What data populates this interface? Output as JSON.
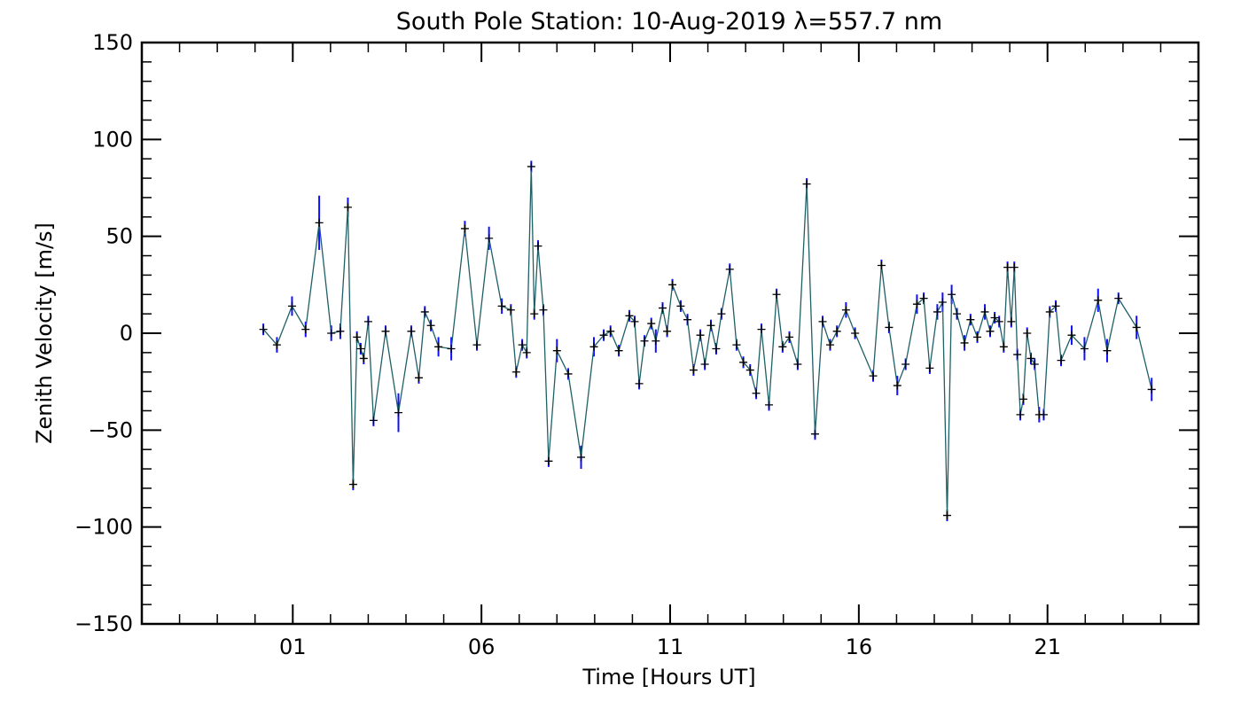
{
  "chart_data": {
    "type": "line",
    "title": "South Pole Station: 10-Aug-2019 λ=557.7 nm",
    "xlabel": "Time [Hours UT]",
    "ylabel": "Zenith Velocity [m/s]",
    "xlim": [
      -3.0,
      25.0
    ],
    "ylim": [
      -150,
      150
    ],
    "x_ticks": [
      1,
      6,
      11,
      16,
      21
    ],
    "x_tick_labels": [
      "01",
      "06",
      "11",
      "16",
      "21"
    ],
    "y_ticks": [
      -150,
      -100,
      -50,
      0,
      50,
      100,
      150
    ],
    "y_tick_labels": [
      "−150",
      "−100",
      "−50",
      "0",
      "50",
      "100",
      "150"
    ],
    "colors": {
      "line": "#1f5f66",
      "errorbar": "#1010ff",
      "marker": "#000000"
    },
    "series": [
      {
        "name": "Zenith Velocity",
        "points": [
          {
            "x": 0.22,
            "y": 2,
            "err": 3
          },
          {
            "x": 0.58,
            "y": -6,
            "err": 4
          },
          {
            "x": 0.98,
            "y": 14,
            "err": 5
          },
          {
            "x": 1.34,
            "y": 2,
            "err": 4
          },
          {
            "x": 1.7,
            "y": 57,
            "err": 14
          },
          {
            "x": 2.02,
            "y": 0,
            "err": 4
          },
          {
            "x": 2.26,
            "y": 1,
            "err": 4
          },
          {
            "x": 2.46,
            "y": 65,
            "err": 5
          },
          {
            "x": 2.6,
            "y": -78,
            "err": 3
          },
          {
            "x": 2.7,
            "y": -2,
            "err": 3
          },
          {
            "x": 2.8,
            "y": -8,
            "err": 3
          },
          {
            "x": 2.88,
            "y": -13,
            "err": 3
          },
          {
            "x": 3.0,
            "y": 6,
            "err": 3
          },
          {
            "x": 3.14,
            "y": -45,
            "err": 3
          },
          {
            "x": 3.46,
            "y": 1,
            "err": 3
          },
          {
            "x": 3.8,
            "y": -41,
            "err": 10
          },
          {
            "x": 4.14,
            "y": 1,
            "err": 3
          },
          {
            "x": 4.34,
            "y": -23,
            "err": 3
          },
          {
            "x": 4.5,
            "y": 11,
            "err": 3
          },
          {
            "x": 4.66,
            "y": 4,
            "err": 3
          },
          {
            "x": 4.86,
            "y": -7,
            "err": 5
          },
          {
            "x": 5.2,
            "y": -8,
            "err": 6
          },
          {
            "x": 5.56,
            "y": 54,
            "err": 4
          },
          {
            "x": 5.88,
            "y": -6,
            "err": 3
          },
          {
            "x": 6.2,
            "y": 49,
            "err": 6
          },
          {
            "x": 6.54,
            "y": 14,
            "err": 4
          },
          {
            "x": 6.78,
            "y": 12,
            "err": 3
          },
          {
            "x": 6.92,
            "y": -20,
            "err": 3
          },
          {
            "x": 7.08,
            "y": -6,
            "err": 3
          },
          {
            "x": 7.2,
            "y": -10,
            "err": 3
          },
          {
            "x": 7.32,
            "y": 86,
            "err": 3
          },
          {
            "x": 7.4,
            "y": 10,
            "err": 3
          },
          {
            "x": 7.5,
            "y": 45,
            "err": 3
          },
          {
            "x": 7.64,
            "y": 12,
            "err": 3
          },
          {
            "x": 7.78,
            "y": -66,
            "err": 3
          },
          {
            "x": 8.0,
            "y": -9,
            "err": 6
          },
          {
            "x": 8.3,
            "y": -21,
            "err": 3
          },
          {
            "x": 8.64,
            "y": -64,
            "err": 6
          },
          {
            "x": 8.98,
            "y": -7,
            "err": 5
          },
          {
            "x": 9.24,
            "y": -1,
            "err": 3
          },
          {
            "x": 9.42,
            "y": 1,
            "err": 3
          },
          {
            "x": 9.64,
            "y": -9,
            "err": 3
          },
          {
            "x": 9.92,
            "y": 9,
            "err": 3
          },
          {
            "x": 10.06,
            "y": 6,
            "err": 3
          },
          {
            "x": 10.18,
            "y": -26,
            "err": 3
          },
          {
            "x": 10.32,
            "y": -4,
            "err": 3
          },
          {
            "x": 10.5,
            "y": 5,
            "err": 3
          },
          {
            "x": 10.62,
            "y": -4,
            "err": 6
          },
          {
            "x": 10.8,
            "y": 13,
            "err": 3
          },
          {
            "x": 10.92,
            "y": 1,
            "err": 3
          },
          {
            "x": 11.06,
            "y": 25,
            "err": 3
          },
          {
            "x": 11.28,
            "y": 14,
            "err": 3
          },
          {
            "x": 11.46,
            "y": 7,
            "err": 3
          },
          {
            "x": 11.62,
            "y": -19,
            "err": 3
          },
          {
            "x": 11.8,
            "y": -1,
            "err": 3
          },
          {
            "x": 11.92,
            "y": -16,
            "err": 3
          },
          {
            "x": 12.08,
            "y": 4,
            "err": 3
          },
          {
            "x": 12.22,
            "y": -8,
            "err": 3
          },
          {
            "x": 12.36,
            "y": 10,
            "err": 3
          },
          {
            "x": 12.58,
            "y": 33,
            "err": 3
          },
          {
            "x": 12.76,
            "y": -6,
            "err": 3
          },
          {
            "x": 12.94,
            "y": -15,
            "err": 3
          },
          {
            "x": 13.12,
            "y": -19,
            "err": 3
          },
          {
            "x": 13.28,
            "y": -31,
            "err": 3
          },
          {
            "x": 13.42,
            "y": 2,
            "err": 3
          },
          {
            "x": 13.62,
            "y": -37,
            "err": 3
          },
          {
            "x": 13.82,
            "y": 20,
            "err": 3
          },
          {
            "x": 13.98,
            "y": -7,
            "err": 3
          },
          {
            "x": 14.16,
            "y": -2,
            "err": 3
          },
          {
            "x": 14.38,
            "y": -16,
            "err": 3
          },
          {
            "x": 14.62,
            "y": 77,
            "err": 3
          },
          {
            "x": 14.84,
            "y": -52,
            "err": 3
          },
          {
            "x": 15.04,
            "y": 6,
            "err": 3
          },
          {
            "x": 15.24,
            "y": -6,
            "err": 3
          },
          {
            "x": 15.42,
            "y": 1,
            "err": 3
          },
          {
            "x": 15.66,
            "y": 12,
            "err": 4
          },
          {
            "x": 15.9,
            "y": 0,
            "err": 3
          },
          {
            "x": 16.38,
            "y": -22,
            "err": 3
          },
          {
            "x": 16.6,
            "y": 35,
            "err": 3
          },
          {
            "x": 16.8,
            "y": 3,
            "err": 3
          },
          {
            "x": 17.02,
            "y": -27,
            "err": 5
          },
          {
            "x": 17.24,
            "y": -16,
            "err": 3
          },
          {
            "x": 17.54,
            "y": 15,
            "err": 5
          },
          {
            "x": 17.72,
            "y": 18,
            "err": 3
          },
          {
            "x": 17.88,
            "y": -18,
            "err": 3
          },
          {
            "x": 18.08,
            "y": 11,
            "err": 4
          },
          {
            "x": 18.22,
            "y": 16,
            "err": 5
          },
          {
            "x": 18.34,
            "y": -94,
            "err": 3
          },
          {
            "x": 18.46,
            "y": 20,
            "err": 5
          },
          {
            "x": 18.6,
            "y": 10,
            "err": 3
          },
          {
            "x": 18.8,
            "y": -5,
            "err": 4
          },
          {
            "x": 18.96,
            "y": 7,
            "err": 3
          },
          {
            "x": 19.14,
            "y": -2,
            "err": 3
          },
          {
            "x": 19.34,
            "y": 11,
            "err": 4
          },
          {
            "x": 19.48,
            "y": 1,
            "err": 3
          },
          {
            "x": 19.6,
            "y": 8,
            "err": 3
          },
          {
            "x": 19.72,
            "y": 6,
            "err": 3
          },
          {
            "x": 19.84,
            "y": -7,
            "err": 3
          },
          {
            "x": 19.94,
            "y": 34,
            "err": 3
          },
          {
            "x": 20.04,
            "y": 6,
            "err": 3
          },
          {
            "x": 20.12,
            "y": 34,
            "err": 3
          },
          {
            "x": 20.2,
            "y": -11,
            "err": 3
          },
          {
            "x": 20.28,
            "y": -42,
            "err": 3
          },
          {
            "x": 20.36,
            "y": -34,
            "err": 3
          },
          {
            "x": 20.46,
            "y": 0,
            "err": 3
          },
          {
            "x": 20.56,
            "y": -13,
            "err": 3
          },
          {
            "x": 20.66,
            "y": -16,
            "err": 3
          },
          {
            "x": 20.78,
            "y": -42,
            "err": 4
          },
          {
            "x": 20.9,
            "y": -42,
            "err": 3
          },
          {
            "x": 21.06,
            "y": 11,
            "err": 3
          },
          {
            "x": 21.22,
            "y": 14,
            "err": 3
          },
          {
            "x": 21.36,
            "y": -14,
            "err": 3
          },
          {
            "x": 21.64,
            "y": -1,
            "err": 5
          },
          {
            "x": 21.98,
            "y": -8,
            "err": 6
          },
          {
            "x": 22.34,
            "y": 17,
            "err": 6
          },
          {
            "x": 22.58,
            "y": -9,
            "err": 6
          },
          {
            "x": 22.88,
            "y": 18,
            "err": 3
          },
          {
            "x": 23.36,
            "y": 3,
            "err": 6
          },
          {
            "x": 23.76,
            "y": -29,
            "err": 6
          }
        ]
      }
    ]
  }
}
